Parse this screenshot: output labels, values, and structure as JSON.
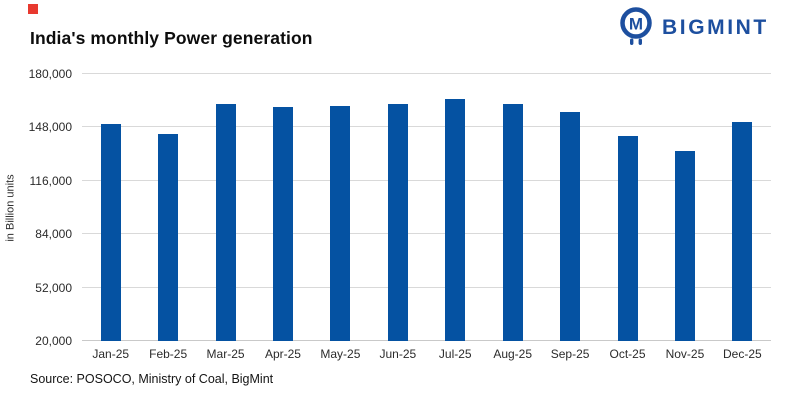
{
  "header": {
    "title": "India's monthly Power generation",
    "logo_text": "BIGMINT"
  },
  "colors": {
    "bar_blue": "#0552a2",
    "logo_blue": "#1d4f9f",
    "gridline_gray": "#d9d9d9",
    "marker_red": "#e8392f"
  },
  "chart_data": {
    "type": "bar",
    "title": "India's monthly Power generation",
    "xlabel": "",
    "ylabel": "in Billion units",
    "categories": [
      "Jan-25",
      "Feb-25",
      "Mar-25",
      "Apr-25",
      "May-25",
      "Jun-25",
      "Jul-25",
      "Aug-25",
      "Sep-25",
      "Oct-25",
      "Nov-25",
      "Dec-25"
    ],
    "values": [
      150000,
      144000,
      162000,
      160000,
      161000,
      162000,
      165000,
      162000,
      157000,
      143000,
      134000,
      151000
    ],
    "ylim": [
      20000,
      180000
    ],
    "yticks": [
      20000,
      52000,
      84000,
      116000,
      148000,
      180000
    ],
    "ytick_labels": [
      "20,000",
      "52,000",
      "84,000",
      "116,000",
      "148,000",
      "180,000"
    ],
    "grid": true,
    "legend": "none"
  },
  "footer": {
    "source": "Source: POSOCO, Ministry of Coal, BigMint"
  }
}
